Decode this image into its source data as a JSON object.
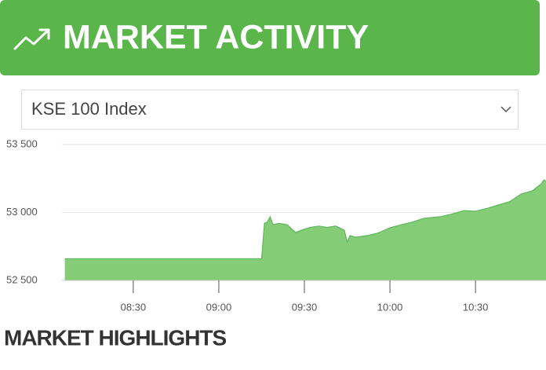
{
  "header": {
    "title": "MARKET ACTIVITY"
  },
  "select": {
    "value": "KSE 100 Index"
  },
  "chart_data": {
    "type": "area",
    "x": [
      "08:06",
      "09:15",
      "09:16",
      "09:17",
      "09:18",
      "09:19",
      "09:21",
      "09:24",
      "09:26",
      "09:27",
      "09:29",
      "09:32",
      "09:35",
      "09:38",
      "09:41",
      "09:43",
      "09:44",
      "09:45",
      "09:46",
      "09:48",
      "09:52",
      "09:56",
      "10:00",
      "10:04",
      "10:08",
      "10:12",
      "10:18",
      "10:22",
      "10:26",
      "10:30",
      "10:34",
      "10:38",
      "10:42",
      "10:46",
      "10:50",
      "10:53",
      "10:54",
      "10:55"
    ],
    "values": [
      52660,
      52660,
      52920,
      52930,
      52968,
      52910,
      52920,
      52910,
      52870,
      52853,
      52870,
      52890,
      52900,
      52890,
      52900,
      52880,
      52870,
      52783,
      52830,
      52818,
      52830,
      52850,
      52887,
      52910,
      52930,
      52957,
      52970,
      52990,
      53014,
      53010,
      53030,
      53055,
      53080,
      53136,
      53160,
      53210,
      53240,
      53230
    ],
    "color": "#85cc77",
    "line_color": "#5cb85c",
    "xlim": [
      "08:05",
      "10:55"
    ],
    "xticks": [
      "08:30",
      "09:00",
      "09:30",
      "10:00",
      "10:30"
    ],
    "ylim": [
      52500,
      53500
    ],
    "yticks": [
      {
        "value": 52500,
        "label": "52 500"
      },
      {
        "value": 53000,
        "label": "53 000"
      },
      {
        "value": 53500,
        "label": "53 500"
      }
    ],
    "grid": true
  },
  "section": {
    "title": "MARKET HIGHLIGHTS"
  }
}
